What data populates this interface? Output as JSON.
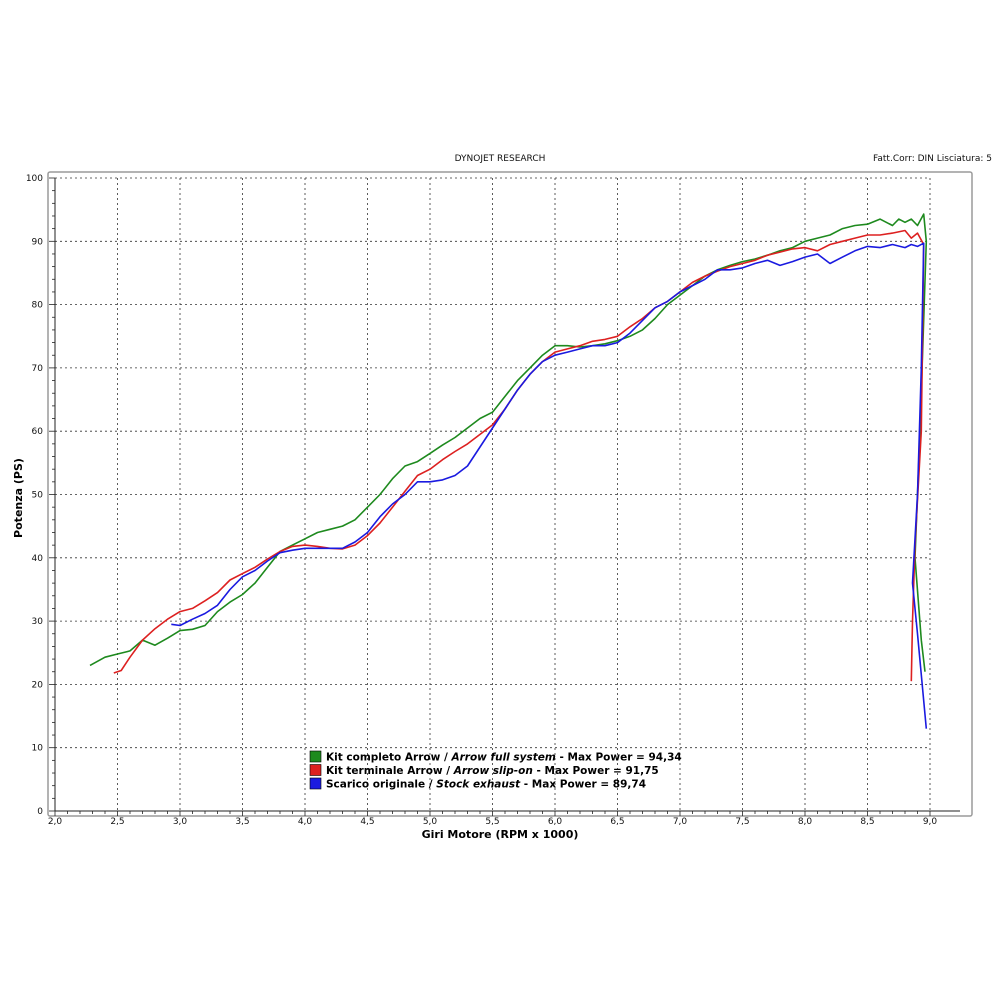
{
  "header": {
    "title": "DYNOJET RESEARCH",
    "corr": "Fatt.Corr: DIN  Lisciatura: 5"
  },
  "chart_data": {
    "type": "line",
    "xlabel": "Giri Motore (RPM x 1000)",
    "ylabel": "Potenza (PS)",
    "xlim": [
      2.0,
      9.0
    ],
    "ylim": [
      0,
      100
    ],
    "x_ticks": [
      "2,0",
      "2,5",
      "3,0",
      "3,5",
      "4,0",
      "4,5",
      "5,0",
      "5,5",
      "6,0",
      "6,5",
      "7,0",
      "7,5",
      "8,0",
      "8,5",
      "9,0"
    ],
    "y_ticks": [
      "0",
      "10",
      "20",
      "30",
      "40",
      "50",
      "60",
      "70",
      "80",
      "90",
      "100"
    ],
    "grid": true,
    "legend_position": "bottom-center",
    "series": [
      {
        "name": "Kit completo Arrow / Arrow full system - Max Power = 94,34",
        "label_main": "Kit completo Arrow",
        "label_italic": "Arrow full system",
        "label_suffix": "- Max Power = 94,34",
        "color": "#1e8a1e",
        "points": [
          [
            2.28,
            23
          ],
          [
            2.4,
            24.3
          ],
          [
            2.5,
            24.8
          ],
          [
            2.6,
            25.3
          ],
          [
            2.7,
            27
          ],
          [
            2.8,
            26.2
          ],
          [
            2.9,
            27.3
          ],
          [
            3.0,
            28.5
          ],
          [
            3.1,
            28.7
          ],
          [
            3.2,
            29.3
          ],
          [
            3.3,
            31.5
          ],
          [
            3.4,
            33
          ],
          [
            3.5,
            34.2
          ],
          [
            3.6,
            36
          ],
          [
            3.7,
            38.5
          ],
          [
            3.8,
            41
          ],
          [
            3.9,
            42
          ],
          [
            4.0,
            43
          ],
          [
            4.1,
            44
          ],
          [
            4.2,
            44.5
          ],
          [
            4.3,
            45
          ],
          [
            4.4,
            46
          ],
          [
            4.5,
            48
          ],
          [
            4.6,
            50
          ],
          [
            4.7,
            52.5
          ],
          [
            4.8,
            54.5
          ],
          [
            4.9,
            55.2
          ],
          [
            5.0,
            56.5
          ],
          [
            5.1,
            57.8
          ],
          [
            5.2,
            59
          ],
          [
            5.3,
            60.5
          ],
          [
            5.4,
            62
          ],
          [
            5.5,
            63
          ],
          [
            5.6,
            65.5
          ],
          [
            5.7,
            68
          ],
          [
            5.8,
            70
          ],
          [
            5.9,
            72
          ],
          [
            6.0,
            73.5
          ],
          [
            6.1,
            73.5
          ],
          [
            6.2,
            73.3
          ],
          [
            6.3,
            73.5
          ],
          [
            6.4,
            73.8
          ],
          [
            6.5,
            74.3
          ],
          [
            6.6,
            75
          ],
          [
            6.7,
            76
          ],
          [
            6.8,
            77.8
          ],
          [
            6.9,
            80
          ],
          [
            7.0,
            81.5
          ],
          [
            7.1,
            83
          ],
          [
            7.2,
            84.5
          ],
          [
            7.3,
            85.5
          ],
          [
            7.4,
            86.2
          ],
          [
            7.5,
            86.8
          ],
          [
            7.6,
            87.2
          ],
          [
            7.7,
            87.8
          ],
          [
            7.8,
            88.5
          ],
          [
            7.9,
            89
          ],
          [
            8.0,
            90
          ],
          [
            8.1,
            90.5
          ],
          [
            8.2,
            91
          ],
          [
            8.3,
            92
          ],
          [
            8.4,
            92.5
          ],
          [
            8.5,
            92.7
          ],
          [
            8.6,
            93.5
          ],
          [
            8.7,
            92.5
          ],
          [
            8.75,
            93.5
          ],
          [
            8.8,
            93
          ],
          [
            8.85,
            93.5
          ],
          [
            8.9,
            92.5
          ],
          [
            8.95,
            94.3
          ],
          [
            8.97,
            90
          ],
          [
            8.92,
            60
          ],
          [
            8.88,
            40
          ],
          [
            8.93,
            27
          ],
          [
            8.96,
            22
          ]
        ]
      },
      {
        "name": "Kit terminale Arrow / Arrow slip-on - Max Power = 91,75",
        "label_main": "Kit terminale Arrow",
        "label_italic": "Arrow slip-on",
        "label_suffix": "- Max Power = 91,75",
        "color": "#dd2020",
        "points": [
          [
            2.47,
            21.8
          ],
          [
            2.53,
            22.2
          ],
          [
            2.6,
            24.3
          ],
          [
            2.7,
            27
          ],
          [
            2.8,
            28.8
          ],
          [
            2.9,
            30.3
          ],
          [
            3.0,
            31.5
          ],
          [
            3.1,
            32
          ],
          [
            3.2,
            33.2
          ],
          [
            3.3,
            34.5
          ],
          [
            3.4,
            36.5
          ],
          [
            3.5,
            37.5
          ],
          [
            3.6,
            38.5
          ],
          [
            3.7,
            39.8
          ],
          [
            3.8,
            41
          ],
          [
            3.9,
            41.8
          ],
          [
            4.0,
            42
          ],
          [
            4.1,
            41.8
          ],
          [
            4.2,
            41.5
          ],
          [
            4.3,
            41.4
          ],
          [
            4.4,
            42
          ],
          [
            4.5,
            43.5
          ],
          [
            4.6,
            45.5
          ],
          [
            4.7,
            48
          ],
          [
            4.8,
            50.5
          ],
          [
            4.9,
            53
          ],
          [
            5.0,
            54
          ],
          [
            5.1,
            55.5
          ],
          [
            5.2,
            56.8
          ],
          [
            5.3,
            58
          ],
          [
            5.4,
            59.5
          ],
          [
            5.5,
            61
          ],
          [
            5.6,
            63.5
          ],
          [
            5.7,
            66.5
          ],
          [
            5.8,
            69
          ],
          [
            5.9,
            71
          ],
          [
            6.0,
            72.5
          ],
          [
            6.1,
            73
          ],
          [
            6.2,
            73.5
          ],
          [
            6.3,
            74.2
          ],
          [
            6.4,
            74.5
          ],
          [
            6.5,
            75
          ],
          [
            6.6,
            76.5
          ],
          [
            6.7,
            77.8
          ],
          [
            6.8,
            79.5
          ],
          [
            6.9,
            80.5
          ],
          [
            7.0,
            82
          ],
          [
            7.1,
            83.5
          ],
          [
            7.2,
            84.5
          ],
          [
            7.3,
            85.3
          ],
          [
            7.4,
            86
          ],
          [
            7.5,
            86.5
          ],
          [
            7.6,
            87
          ],
          [
            7.7,
            87.8
          ],
          [
            7.8,
            88.3
          ],
          [
            7.9,
            88.8
          ],
          [
            8.0,
            89
          ],
          [
            8.1,
            88.5
          ],
          [
            8.2,
            89.5
          ],
          [
            8.3,
            90
          ],
          [
            8.4,
            90.5
          ],
          [
            8.5,
            91
          ],
          [
            8.6,
            91
          ],
          [
            8.7,
            91.3
          ],
          [
            8.8,
            91.7
          ],
          [
            8.85,
            90.5
          ],
          [
            8.9,
            91.3
          ],
          [
            8.95,
            89.5
          ],
          [
            8.93,
            60
          ],
          [
            8.88,
            42
          ],
          [
            8.86,
            30
          ],
          [
            8.85,
            20.5
          ]
        ]
      },
      {
        "name": "Scarico originale / Stock exhaust - Max Power = 89,74",
        "label_main": "Scarico originale",
        "label_italic": "Stock exhaust",
        "label_suffix": "- Max Power = 89,74",
        "color": "#1a1ae0",
        "points": [
          [
            2.93,
            29.5
          ],
          [
            3.0,
            29.3
          ],
          [
            3.1,
            30.3
          ],
          [
            3.2,
            31.2
          ],
          [
            3.3,
            32.5
          ],
          [
            3.4,
            35
          ],
          [
            3.5,
            37
          ],
          [
            3.6,
            38
          ],
          [
            3.7,
            39.5
          ],
          [
            3.8,
            40.8
          ],
          [
            3.9,
            41.2
          ],
          [
            4.0,
            41.5
          ],
          [
            4.1,
            41.5
          ],
          [
            4.2,
            41.5
          ],
          [
            4.3,
            41.5
          ],
          [
            4.4,
            42.5
          ],
          [
            4.5,
            44
          ],
          [
            4.6,
            46.5
          ],
          [
            4.7,
            48.5
          ],
          [
            4.8,
            50
          ],
          [
            4.9,
            52
          ],
          [
            5.0,
            52
          ],
          [
            5.1,
            52.3
          ],
          [
            5.2,
            53
          ],
          [
            5.3,
            54.5
          ],
          [
            5.4,
            57.5
          ],
          [
            5.5,
            60.5
          ],
          [
            5.6,
            63.5
          ],
          [
            5.7,
            66.5
          ],
          [
            5.8,
            69
          ],
          [
            5.9,
            71
          ],
          [
            6.0,
            72
          ],
          [
            6.1,
            72.5
          ],
          [
            6.2,
            73
          ],
          [
            6.3,
            73.5
          ],
          [
            6.4,
            73.5
          ],
          [
            6.5,
            74
          ],
          [
            6.6,
            75.5
          ],
          [
            6.7,
            77.5
          ],
          [
            6.8,
            79.5
          ],
          [
            6.9,
            80.5
          ],
          [
            7.0,
            82
          ],
          [
            7.1,
            83
          ],
          [
            7.2,
            84
          ],
          [
            7.3,
            85.5
          ],
          [
            7.4,
            85.5
          ],
          [
            7.5,
            85.8
          ],
          [
            7.6,
            86.5
          ],
          [
            7.7,
            87
          ],
          [
            7.8,
            86.2
          ],
          [
            7.9,
            86.8
          ],
          [
            8.0,
            87.5
          ],
          [
            8.1,
            88
          ],
          [
            8.2,
            86.5
          ],
          [
            8.3,
            87.5
          ],
          [
            8.4,
            88.5
          ],
          [
            8.5,
            89.2
          ],
          [
            8.6,
            89
          ],
          [
            8.7,
            89.5
          ],
          [
            8.8,
            89
          ],
          [
            8.85,
            89.5
          ],
          [
            8.9,
            89.2
          ],
          [
            8.95,
            89.7
          ],
          [
            8.93,
            70
          ],
          [
            8.9,
            50
          ],
          [
            8.86,
            36
          ],
          [
            8.9,
            28
          ],
          [
            8.97,
            13
          ]
        ]
      }
    ]
  }
}
